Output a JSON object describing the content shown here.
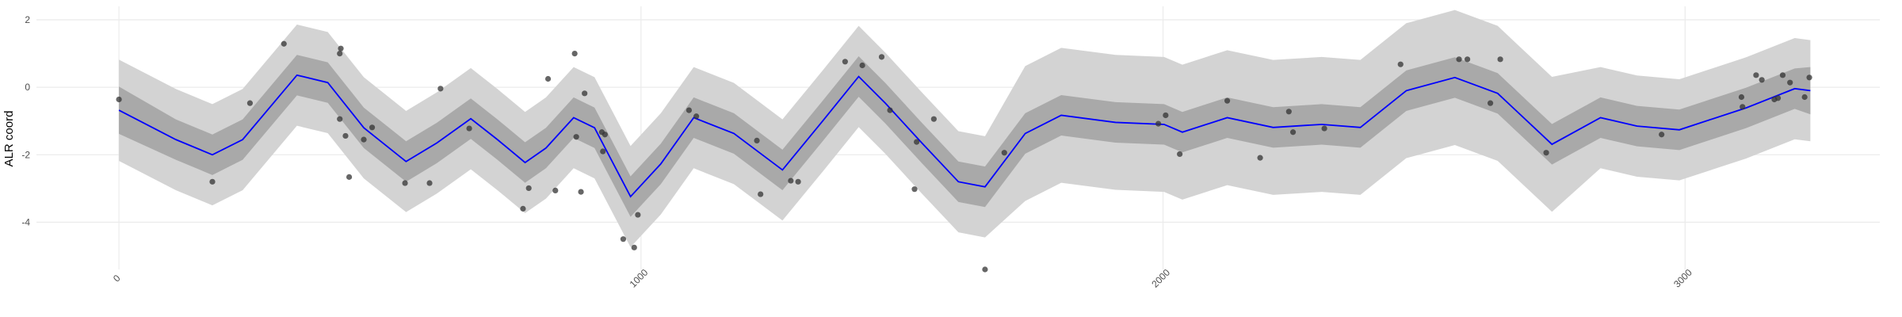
{
  "chart_data": {
    "type": "line",
    "y_label": "ALR coord",
    "xlim": [
      -158,
      3373
    ],
    "ylim": [
      -5.4,
      2.4
    ],
    "xticks": [
      0,
      1000,
      2000,
      3000
    ],
    "yticks": [
      -4,
      -2,
      0,
      2
    ],
    "grid": true,
    "x": [
      0,
      109,
      179,
      237,
      341,
      400,
      469,
      550,
      609,
      674,
      725,
      778,
      818,
      871,
      911,
      980,
      1038,
      1101,
      1178,
      1271,
      1348,
      1417,
      1468,
      1538,
      1608,
      1659,
      1736,
      1805,
      1909,
      2002,
      2037,
      2123,
      2211,
      2304,
      2378,
      2466,
      2559,
      2641,
      2745,
      2838,
      2908,
      2989,
      3117,
      3210,
      3240
    ],
    "bands": [
      {
        "color": "#d3d3d3",
        "lower": [
          -2.18,
          -3.05,
          -3.5,
          -3.05,
          -1.14,
          -1.36,
          -2.7,
          -3.7,
          -3.15,
          -2.43,
          -3.05,
          -3.73,
          -3.3,
          -2.4,
          -2.7,
          -4.74,
          -3.77,
          -2.4,
          -2.87,
          -3.95,
          -2.5,
          -1.18,
          -1.97,
          -3.15,
          -4.3,
          -4.45,
          -3.37,
          -2.83,
          -3.04,
          -3.1,
          -3.33,
          -2.9,
          -3.19,
          -3.1,
          -3.19,
          -2.1,
          -1.71,
          -2.18,
          -3.69,
          -2.4,
          -2.65,
          -2.76,
          -2.11,
          -1.54,
          -1.6
        ],
        "upper": [
          0.82,
          -0.05,
          -0.5,
          -0.05,
          1.86,
          1.64,
          0.3,
          -0.7,
          -0.15,
          0.57,
          -0.05,
          -0.73,
          -0.3,
          0.6,
          0.3,
          -1.74,
          -0.77,
          0.6,
          0.13,
          -0.95,
          0.5,
          1.82,
          1.03,
          -0.15,
          -1.3,
          -1.45,
          0.63,
          1.17,
          0.96,
          0.9,
          0.67,
          1.1,
          0.81,
          0.9,
          0.81,
          1.9,
          2.29,
          1.82,
          0.31,
          0.6,
          0.35,
          0.24,
          0.89,
          1.46,
          1.4
        ]
      },
      {
        "color": "#a9a9a9",
        "lower": [
          -1.38,
          -2.15,
          -2.6,
          -2.15,
          -0.24,
          -0.46,
          -1.8,
          -2.8,
          -2.25,
          -1.53,
          -2.15,
          -2.83,
          -2.4,
          -1.5,
          -1.8,
          -3.84,
          -2.87,
          -1.5,
          -1.97,
          -3.05,
          -1.6,
          -0.28,
          -1.07,
          -2.25,
          -3.4,
          -3.55,
          -1.97,
          -1.43,
          -1.64,
          -1.7,
          -1.93,
          -1.5,
          -1.79,
          -1.7,
          -1.79,
          -0.7,
          -0.31,
          -0.78,
          -2.29,
          -1.5,
          -1.75,
          -1.86,
          -1.21,
          -0.64,
          -0.8
        ],
        "upper": [
          0.02,
          -0.95,
          -1.4,
          -0.95,
          0.96,
          0.74,
          -0.6,
          -1.6,
          -1.05,
          -0.33,
          -0.95,
          -1.63,
          -1.2,
          -0.3,
          -0.6,
          -2.64,
          -1.67,
          -0.3,
          -0.77,
          -1.85,
          -0.4,
          0.92,
          0.13,
          -1.05,
          -2.2,
          -2.35,
          -0.77,
          -0.23,
          -0.44,
          -0.5,
          -0.73,
          -0.3,
          -0.59,
          -0.5,
          -0.59,
          0.5,
          0.89,
          0.42,
          -1.09,
          -0.3,
          -0.55,
          -0.66,
          -0.01,
          0.56,
          0.6
        ]
      }
    ],
    "line": {
      "color": "#0000ff",
      "values": [
        -0.68,
        -1.55,
        -2.0,
        -1.55,
        0.36,
        0.14,
        -1.2,
        -2.2,
        -1.65,
        -0.93,
        -1.55,
        -2.23,
        -1.8,
        -0.9,
        -1.2,
        -3.24,
        -2.27,
        -0.9,
        -1.37,
        -2.45,
        -1.0,
        0.32,
        -0.47,
        -1.65,
        -2.8,
        -2.95,
        -1.37,
        -0.83,
        -1.04,
        -1.1,
        -1.33,
        -0.9,
        -1.19,
        -1.1,
        -1.19,
        -0.1,
        0.29,
        -0.18,
        -1.69,
        -0.9,
        -1.15,
        -1.26,
        -0.61,
        -0.04,
        -0.1
      ]
    },
    "points": {
      "color": "#333333",
      "x": [
        0,
        179,
        251,
        316,
        423,
        425,
        423,
        434,
        441,
        469,
        485,
        548,
        595,
        616,
        671,
        774,
        785,
        822,
        836,
        873,
        876,
        885,
        892,
        925,
        931,
        927,
        966,
        987,
        994,
        1092,
        1106,
        1222,
        1229,
        1287,
        1301,
        1391,
        1424,
        1461,
        1477,
        1524,
        1528,
        1561,
        1659,
        1696,
        1991,
        2005,
        2032,
        2123,
        2186,
        2241,
        2249,
        2309,
        2455,
        2567,
        2583,
        2627,
        2646,
        2734,
        2955,
        3108,
        3110,
        3136,
        3147,
        3171,
        3178,
        3187,
        3201,
        3229,
        3238
      ],
      "y": [
        -0.36,
        -2.8,
        -0.47,
        1.29,
        1.0,
        1.15,
        -0.94,
        -1.44,
        -2.66,
        -1.55,
        -1.19,
        -2.84,
        -2.84,
        -0.04,
        -1.22,
        -3.6,
        -2.99,
        0.25,
        -3.06,
        1.0,
        -1.47,
        -3.1,
        -0.18,
        -1.33,
        -1.4,
        -1.9,
        -4.5,
        -4.75,
        -3.78,
        -0.68,
        -0.86,
        -1.58,
        -3.17,
        -2.77,
        -2.8,
        0.76,
        0.65,
        0.9,
        -0.68,
        -3.02,
        -1.62,
        -0.94,
        -5.4,
        -1.94,
        -1.08,
        -0.83,
        -1.98,
        -0.4,
        -2.09,
        -0.72,
        -1.33,
        -1.22,
        0.68,
        0.83,
        0.83,
        -0.47,
        0.83,
        -1.94,
        -1.4,
        -0.29,
        -0.58,
        0.36,
        0.22,
        -0.36,
        -0.32,
        0.36,
        0.14,
        -0.29,
        0.29
      ]
    }
  }
}
